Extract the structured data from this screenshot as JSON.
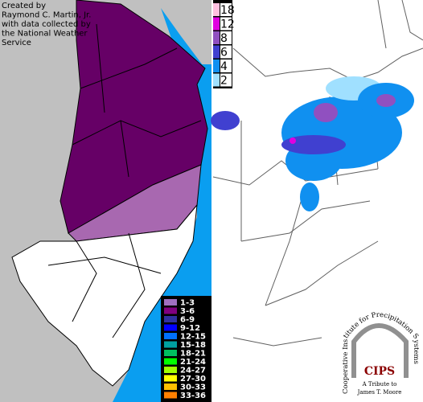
{
  "credit": [
    "Created by",
    "Raymond C. Martin, Jr.",
    "with data collected by",
    "the National Weather",
    "Service"
  ],
  "nj_legend": [
    {
      "label": "1-3",
      "color": "#a070c0"
    },
    {
      "label": "3-6",
      "color": "#800080"
    },
    {
      "label": "6-9",
      "color": "#3030a0"
    },
    {
      "label": "9-12",
      "color": "#0000ff"
    },
    {
      "label": "12-15",
      "color": "#0070ff"
    },
    {
      "label": "15-18",
      "color": "#00a0a0"
    },
    {
      "label": "18-21",
      "color": "#00c060"
    },
    {
      "label": "21-24",
      "color": "#00ff00"
    },
    {
      "label": "24-27",
      "color": "#a0ff00"
    },
    {
      "label": "27-30",
      "color": "#ffff00"
    },
    {
      "label": "30-33",
      "color": "#ffc000"
    },
    {
      "label": "33-36",
      "color": "#ff8000"
    }
  ],
  "region_legend": [
    {
      "label": 18,
      "color": "#ffc0e0"
    },
    {
      "label": 12,
      "color": "#e000e0"
    },
    {
      "label": 8,
      "color": "#9050c0"
    },
    {
      "label": 6,
      "color": "#4040d0"
    },
    {
      "label": 4,
      "color": "#1090f0"
    },
    {
      "label": 2,
      "color": "#a0e0ff"
    }
  ],
  "logo": {
    "arc_text": "Cooperative Institute for Precipitation Systems",
    "name": "CIPS",
    "tribute": [
      "A Tribute to",
      "James T. Moore"
    ]
  }
}
